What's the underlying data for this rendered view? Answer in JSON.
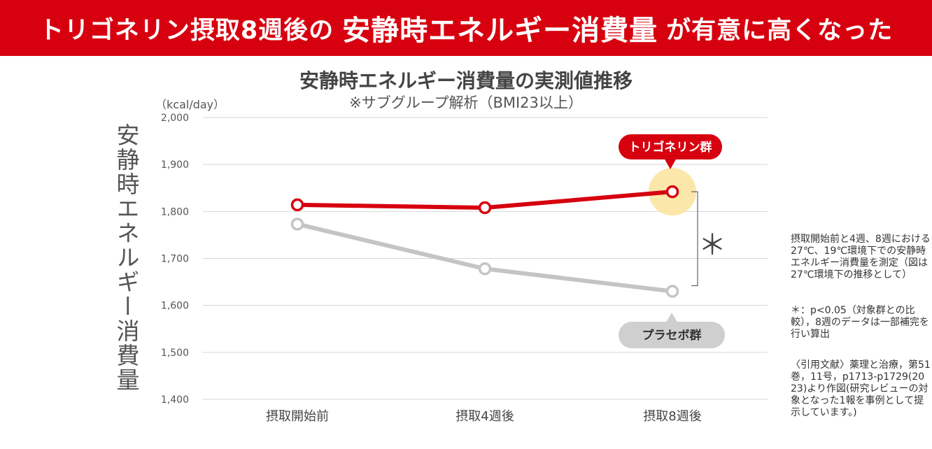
{
  "header": {
    "title_part1": "トリゴネリン摂取8週後の",
    "title_highlight": "安静時エネルギー消費量",
    "title_part2": "が有意に高くなった"
  },
  "colors": {
    "accent": "#d7000f",
    "placebo": "#c4c4c4",
    "highlight": "#fbe39b"
  },
  "chart_data": {
    "type": "line",
    "title": "安静時エネルギー消費量の実測値推移",
    "subtitle": "※サブグループ解析（BMI23以上）",
    "unit": "（kcal/day）",
    "ylabel": "安静時エネルギー消費量",
    "ylim": [
      1400,
      2000
    ],
    "yticks": [
      "2,000",
      "1,900",
      "1,800",
      "1,700",
      "1,600",
      "1,500",
      "1,400"
    ],
    "categories": [
      "摂取開始前",
      "摂取4週後",
      "摂取8週後"
    ],
    "series": [
      {
        "name": "トリゴネリン群",
        "values": [
          1814,
          1808,
          1842
        ]
      },
      {
        "name": "プラセボ群",
        "values": [
          1773,
          1678,
          1630
        ]
      }
    ],
    "significance": "＊",
    "grid": true
  },
  "notes": {
    "note1": "摂取開始前と4週、8週における27℃、19℃環境下での安静時エネルギー消費量を測定（図は27℃環境下の推移として）",
    "note2": "＊：p<0.05（対象群との比較），8週のデータは一部補完を行い算出",
    "note3": "〈引用文献〉薬理と治療，第51巻，11号，p1713-p1729(2023)より作図(研究レビューの対象となった1報を事例として提示しています。)"
  }
}
